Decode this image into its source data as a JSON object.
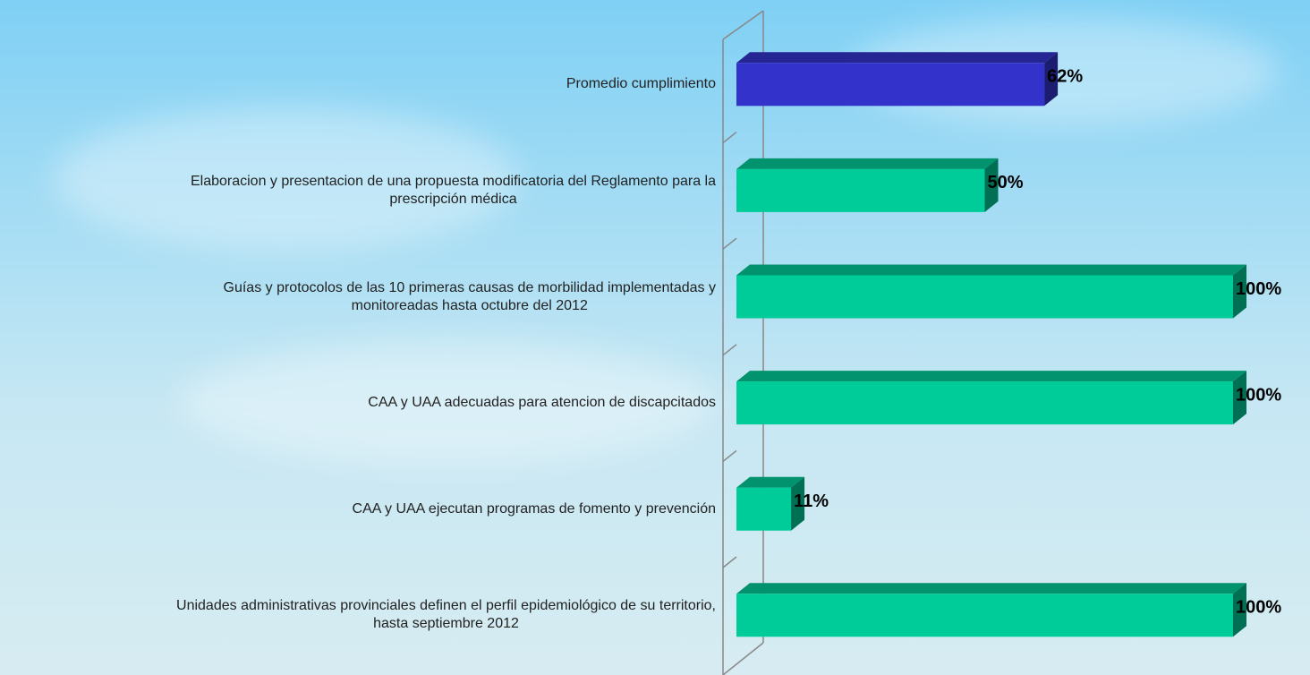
{
  "chart_data": {
    "type": "bar",
    "orientation": "horizontal",
    "categories": [
      "Promedio  cumplimiento",
      "Elaboracion y presentacion de una propuesta modificatoria del Reglamento para la\nprescripción médica",
      "Guías y protocolos de las 10 primeras causas de morbilidad implementadas y\nmonitoreadas hasta octubre  del 2012",
      "CAA  y UAA adecuadas para atencion de discapcitados",
      "CAA y UAA ejecutan  programas de fomento y prevención",
      "Unidades administrativas provinciales definen el perfil epidemiológico de su territorio,\nhasta septiembre 2012"
    ],
    "values": [
      62,
      50,
      100,
      100,
      11,
      100
    ],
    "value_labels": [
      "62%",
      "50%",
      "100%",
      "100%",
      "11%",
      "100%"
    ],
    "colors": [
      "#3333cc",
      "#00cc99",
      "#00cc99",
      "#00cc99",
      "#00cc99",
      "#00cc99"
    ],
    "xlim": [
      0,
      100
    ]
  }
}
